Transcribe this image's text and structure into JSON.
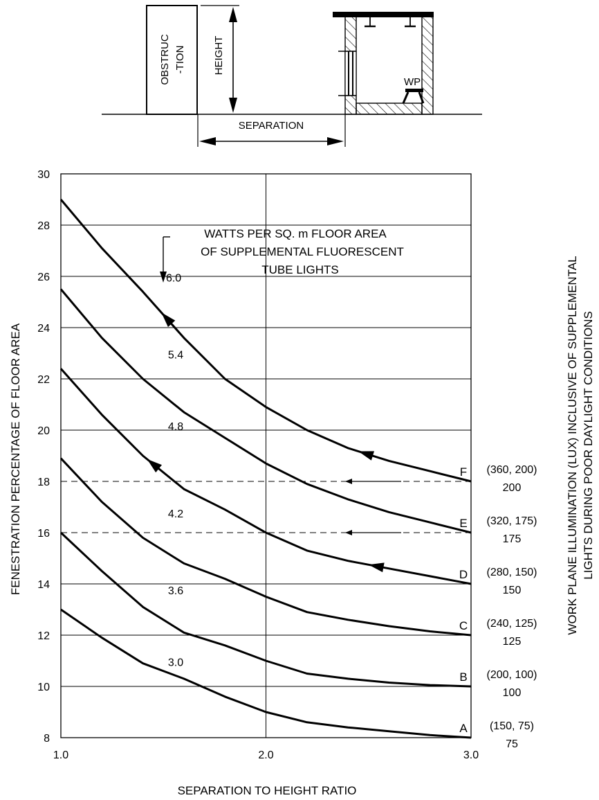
{
  "schematic": {
    "obstruction_label": [
      "OBSTRUC",
      "-TION"
    ],
    "height_label": "HEIGHT",
    "separation_label": "SEPARATION",
    "wp_label": "WP"
  },
  "chart_data": {
    "type": "line",
    "title": "",
    "xlabel": "SEPARATION TO HEIGHT RATIO",
    "ylabel": "FENESTRATION PERCENTAGE OF FLOOR AREA",
    "right_label": [
      "WORK PLANE ILLUMINATION (LUX) INCLUSIVE OF SUPPLEMENTAL",
      "LIGHTS DURING POOR DAYLIGHT CONDITIONS"
    ],
    "xlim": [
      1.0,
      3.0
    ],
    "ylim": [
      8,
      30
    ],
    "x_ticks": [
      "1.0",
      "2.0",
      "3.0"
    ],
    "y_ticks": [
      "8",
      "10",
      "12",
      "14",
      "16",
      "18",
      "20",
      "22",
      "24",
      "26",
      "28",
      "30"
    ],
    "grid": true,
    "annotation": [
      "WATTS PER SQ. m FLOOR AREA",
      "OF SUPPLEMENTAL FLUORESCENT",
      "TUBE LIGHTS"
    ],
    "series": [
      {
        "name": "A",
        "watts": "3.0",
        "illum": "(150, 75)",
        "illum2": "75",
        "x": [
          1.0,
          1.2,
          1.4,
          1.6,
          1.8,
          2.0,
          2.2,
          2.4,
          2.6,
          2.8,
          3.0
        ],
        "y": [
          13.0,
          11.9,
          10.9,
          10.3,
          9.6,
          9.0,
          8.6,
          8.4,
          8.25,
          8.1,
          8.0
        ]
      },
      {
        "name": "B",
        "watts": "3.6",
        "illum": "(200, 100)",
        "illum2": "100",
        "x": [
          1.0,
          1.2,
          1.4,
          1.6,
          1.8,
          2.0,
          2.2,
          2.4,
          2.6,
          2.8,
          3.0
        ],
        "y": [
          16.0,
          14.5,
          13.1,
          12.1,
          11.6,
          11.0,
          10.5,
          10.3,
          10.15,
          10.05,
          10.0
        ]
      },
      {
        "name": "C",
        "watts": "4.2",
        "illum": "(240, 125)",
        "illum2": "125",
        "x": [
          1.0,
          1.2,
          1.4,
          1.6,
          1.8,
          2.0,
          2.2,
          2.4,
          2.6,
          2.8,
          3.0
        ],
        "y": [
          18.9,
          17.2,
          15.8,
          14.8,
          14.2,
          13.5,
          12.9,
          12.6,
          12.35,
          12.15,
          12.0
        ]
      },
      {
        "name": "D",
        "watts": "4.8",
        "illum": "(280, 150)",
        "illum2": "150",
        "x": [
          1.0,
          1.2,
          1.4,
          1.6,
          1.8,
          2.0,
          2.2,
          2.4,
          2.6,
          2.8,
          3.0
        ],
        "y": [
          22.4,
          20.6,
          19.0,
          17.7,
          16.9,
          16.0,
          15.3,
          14.9,
          14.6,
          14.3,
          14.0
        ]
      },
      {
        "name": "E",
        "watts": "5.4",
        "illum": "(320, 175)",
        "illum2": "175",
        "x": [
          1.0,
          1.2,
          1.4,
          1.6,
          1.8,
          2.0,
          2.2,
          2.4,
          2.6,
          2.8,
          3.0
        ],
        "y": [
          25.5,
          23.6,
          22.0,
          20.7,
          19.7,
          18.7,
          17.9,
          17.3,
          16.8,
          16.4,
          16.0
        ]
      },
      {
        "name": "F",
        "watts": "6.0",
        "illum": "(360, 200)",
        "illum2": "200",
        "x": [
          1.0,
          1.2,
          1.4,
          1.6,
          1.8,
          2.0,
          2.2,
          2.4,
          2.6,
          2.8,
          3.0
        ],
        "y": [
          29.0,
          27.1,
          25.4,
          23.6,
          22.0,
          20.9,
          20.0,
          19.3,
          18.8,
          18.4,
          18.0
        ]
      }
    ],
    "dashed_lines": [
      18,
      16
    ]
  }
}
